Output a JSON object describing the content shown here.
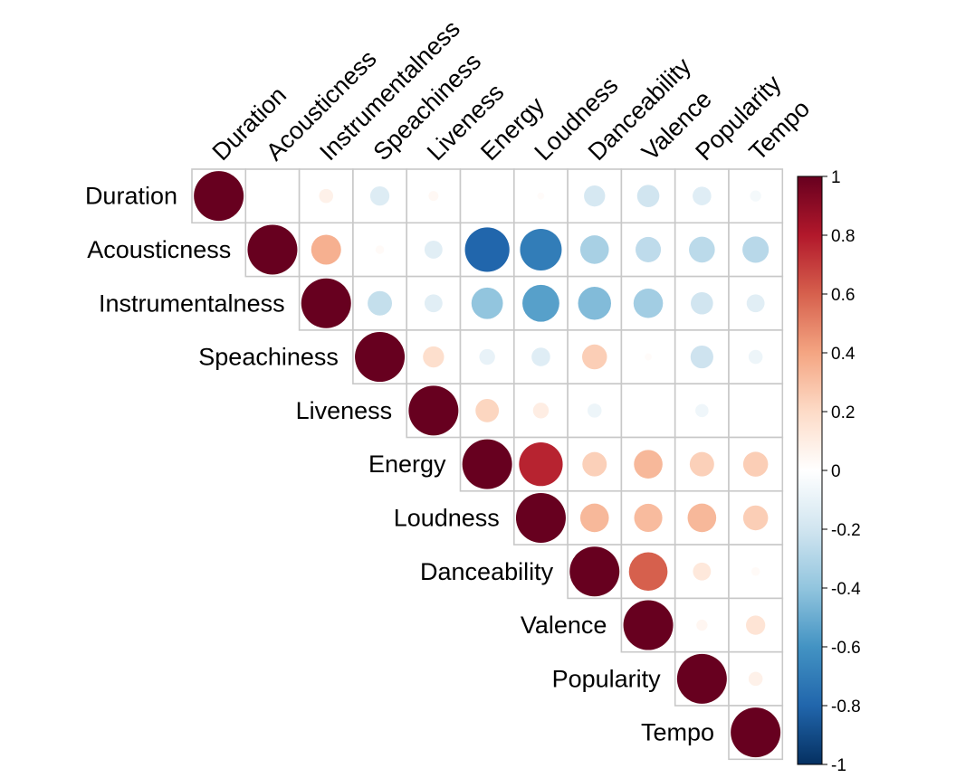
{
  "chart_data": {
    "type": "heatmap",
    "style": "correlation circles, upper triangle",
    "variables": [
      "Duration",
      "Acousticness",
      "Instrumentalness",
      "Speachiness",
      "Liveness",
      "Energy",
      "Loudness",
      "Danceability",
      "Valence",
      "Popularity",
      "Tempo"
    ],
    "matrix": [
      [
        1,
        0.0,
        0.08,
        -0.15,
        0.04,
        0.0,
        0.02,
        -0.18,
        -0.2,
        -0.14,
        -0.05
      ],
      [
        null,
        1,
        0.36,
        0.03,
        -0.13,
        -0.8,
        -0.7,
        -0.33,
        -0.26,
        -0.27,
        -0.28
      ],
      [
        null,
        null,
        1,
        -0.24,
        -0.13,
        -0.4,
        -0.55,
        -0.44,
        -0.35,
        -0.2,
        -0.13
      ],
      [
        null,
        null,
        null,
        1,
        0.18,
        -0.1,
        -0.14,
        0.25,
        0.02,
        -0.21,
        -0.08
      ],
      [
        null,
        null,
        null,
        null,
        1,
        0.22,
        0.1,
        -0.08,
        0.0,
        -0.07,
        0.0
      ],
      [
        null,
        null,
        null,
        null,
        null,
        1,
        0.77,
        0.24,
        0.33,
        0.24,
        0.25
      ],
      [
        null,
        null,
        null,
        null,
        null,
        null,
        1,
        0.33,
        0.32,
        0.33,
        0.25
      ],
      [
        null,
        null,
        null,
        null,
        null,
        null,
        null,
        1,
        0.6,
        0.13,
        0.03
      ],
      [
        null,
        null,
        null,
        null,
        null,
        null,
        null,
        null,
        1,
        0.05,
        0.15
      ],
      [
        null,
        null,
        null,
        null,
        null,
        null,
        null,
        null,
        null,
        1,
        0.08
      ],
      [
        null,
        null,
        null,
        null,
        null,
        null,
        null,
        null,
        null,
        null,
        1
      ]
    ],
    "colorbar": {
      "range": [
        -1,
        1
      ],
      "ticks": [
        "1",
        "0.8",
        "0.6",
        "0.4",
        "0.2",
        "0",
        "-0.2",
        "-0.4",
        "-0.6",
        "-0.8",
        "-1"
      ],
      "colors": [
        "#67001F",
        "#B2182B",
        "#D6604D",
        "#F4A582",
        "#FDDBC7",
        "#FFFFFF",
        "#D1E5F0",
        "#92C5DE",
        "#4393C3",
        "#2166AC",
        "#053061"
      ]
    },
    "grid_color": "#c8c8c8",
    "legend": "right",
    "title": "",
    "xlabel": "",
    "ylabel": ""
  }
}
